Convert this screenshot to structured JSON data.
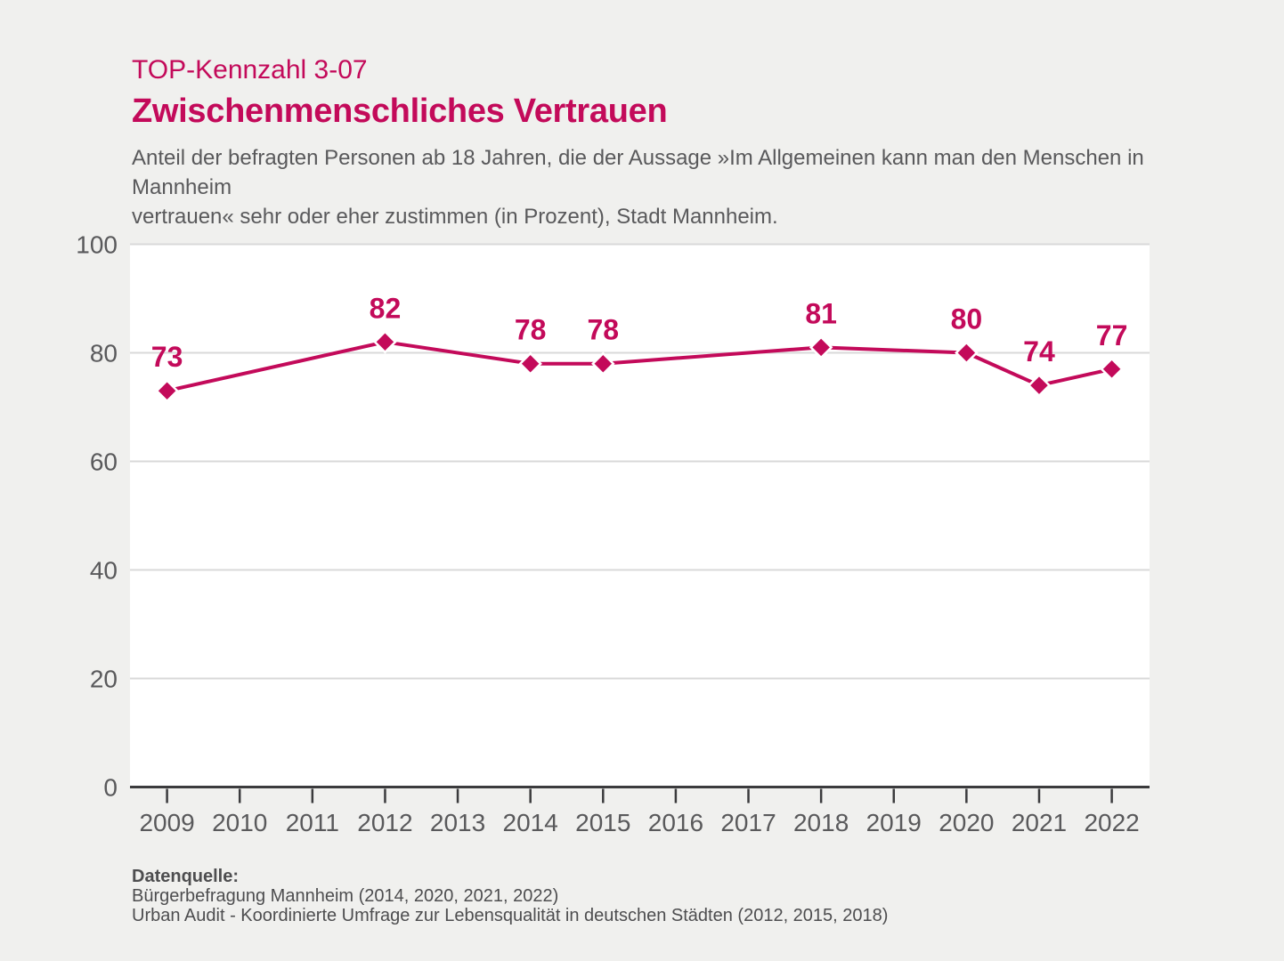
{
  "header": {
    "kicker": "TOP-Kennzahl 3-07",
    "title": "Zwischenmenschliches Vertrauen",
    "subtitle_lines": [
      "Anteil der befragten Personen ab 18 Jahren, die der Aussage »Im Allgemeinen kann man den Menschen in Mannheim",
      "vertrauen« sehr oder eher zustimmen (in Prozent), Stadt Mannheim."
    ]
  },
  "chart_data": {
    "type": "line",
    "title": "Zwischenmenschliches Vertrauen",
    "categories": [
      2009,
      2010,
      2011,
      2012,
      2013,
      2014,
      2015,
      2016,
      2017,
      2018,
      2019,
      2020,
      2021,
      2022
    ],
    "series": [
      {
        "name": "Stadt Mannheim",
        "values": [
          73,
          null,
          null,
          82,
          null,
          78,
          78,
          null,
          null,
          81,
          null,
          80,
          74,
          77
        ]
      }
    ],
    "xlabel": "",
    "ylabel": "",
    "ylim": [
      0,
      100
    ],
    "yticks": [
      0,
      20,
      40,
      60,
      80,
      100
    ],
    "grid": true,
    "legend": false,
    "marker": "diamond",
    "data_labels": true
  },
  "footer": {
    "label": "Datenquelle:",
    "line1": "Bürgerbefragung Mannheim (2014, 2020, 2021, 2022)",
    "line2": "Urban Audit - Koordinierte Umfrage zur Lebensqualität in deutschen Städten (2012, 2015, 2018)"
  },
  "colors": {
    "accent": "#c30a5a",
    "background": "#f0f0ee",
    "plot_background": "#ffffff",
    "gridline": "#d9d9d9",
    "axis": "#3b3b3d",
    "axis_text": "#59595b",
    "footer_text": "#4d4d4f"
  }
}
